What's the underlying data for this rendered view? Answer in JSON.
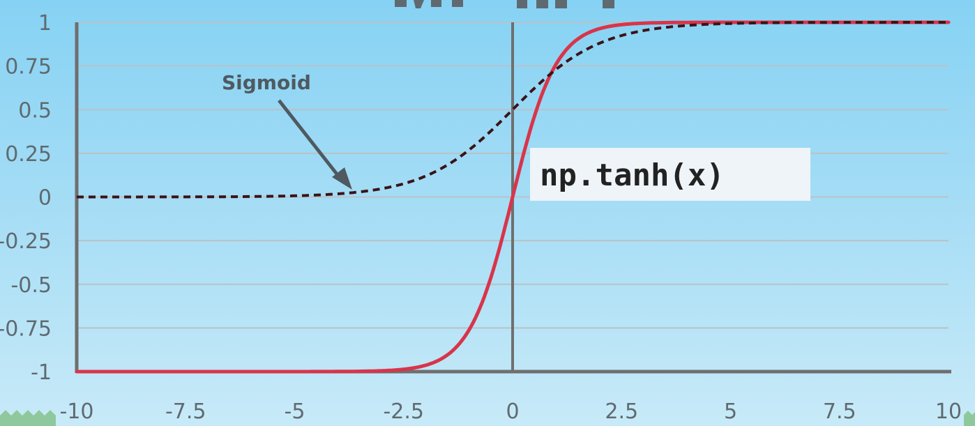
{
  "chart_data": {
    "type": "line",
    "title": "TANH",
    "xlim": [
      -10,
      10
    ],
    "ylim": [
      -1,
      1
    ],
    "x_ticks": [
      -10,
      -7.5,
      -5,
      -2.5,
      0,
      2.5,
      5,
      7.5,
      10
    ],
    "x_tick_labels": [
      "-10",
      "-7.5",
      "-5",
      "-2.5",
      "0",
      "2.5",
      "5",
      "7.5",
      "10"
    ],
    "y_ticks": [
      1,
      0.75,
      0.5,
      0.25,
      0,
      -0.25,
      -0.5,
      -0.75,
      -1
    ],
    "y_tick_labels": [
      "1",
      "0.75",
      "0.5",
      "0.25",
      "0",
      "-0.25",
      "-0.5",
      "-0.75",
      "-1"
    ],
    "grid": true,
    "series": [
      {
        "name": "np.tanh(x)",
        "style": "solid",
        "color": "#d9344a",
        "x": [
          -10,
          -5,
          -3,
          -2.5,
          -2,
          -1.5,
          -1,
          -0.5,
          0,
          0.5,
          1,
          1.5,
          2,
          2.5,
          3,
          5,
          10
        ],
        "y": [
          -1,
          -1,
          -0.995,
          -0.987,
          -0.964,
          -0.905,
          -0.762,
          -0.462,
          0,
          0.462,
          0.762,
          0.905,
          0.964,
          0.987,
          0.995,
          1,
          1
        ]
      },
      {
        "name": "Sigmoid",
        "style": "dotted",
        "color": "#3a1318",
        "x": [
          -10,
          -8,
          -6,
          -5,
          -4,
          -3,
          -2,
          -1,
          0,
          1,
          2,
          3,
          4,
          5,
          6,
          8,
          10
        ],
        "y": [
          0,
          0,
          0.002,
          0.007,
          0.018,
          0.047,
          0.119,
          0.269,
          0.5,
          0.731,
          0.881,
          0.953,
          0.982,
          0.993,
          0.998,
          1,
          1
        ]
      }
    ],
    "annotations": {
      "sigmoid_label": "Sigmoid",
      "tanh_label": "np.tanh(x)"
    }
  },
  "colors": {
    "grid": "#b9c2c6",
    "axis": "#6f6f6f",
    "annotation_box": "#eef4f7",
    "arrow": "#4e5a60"
  }
}
